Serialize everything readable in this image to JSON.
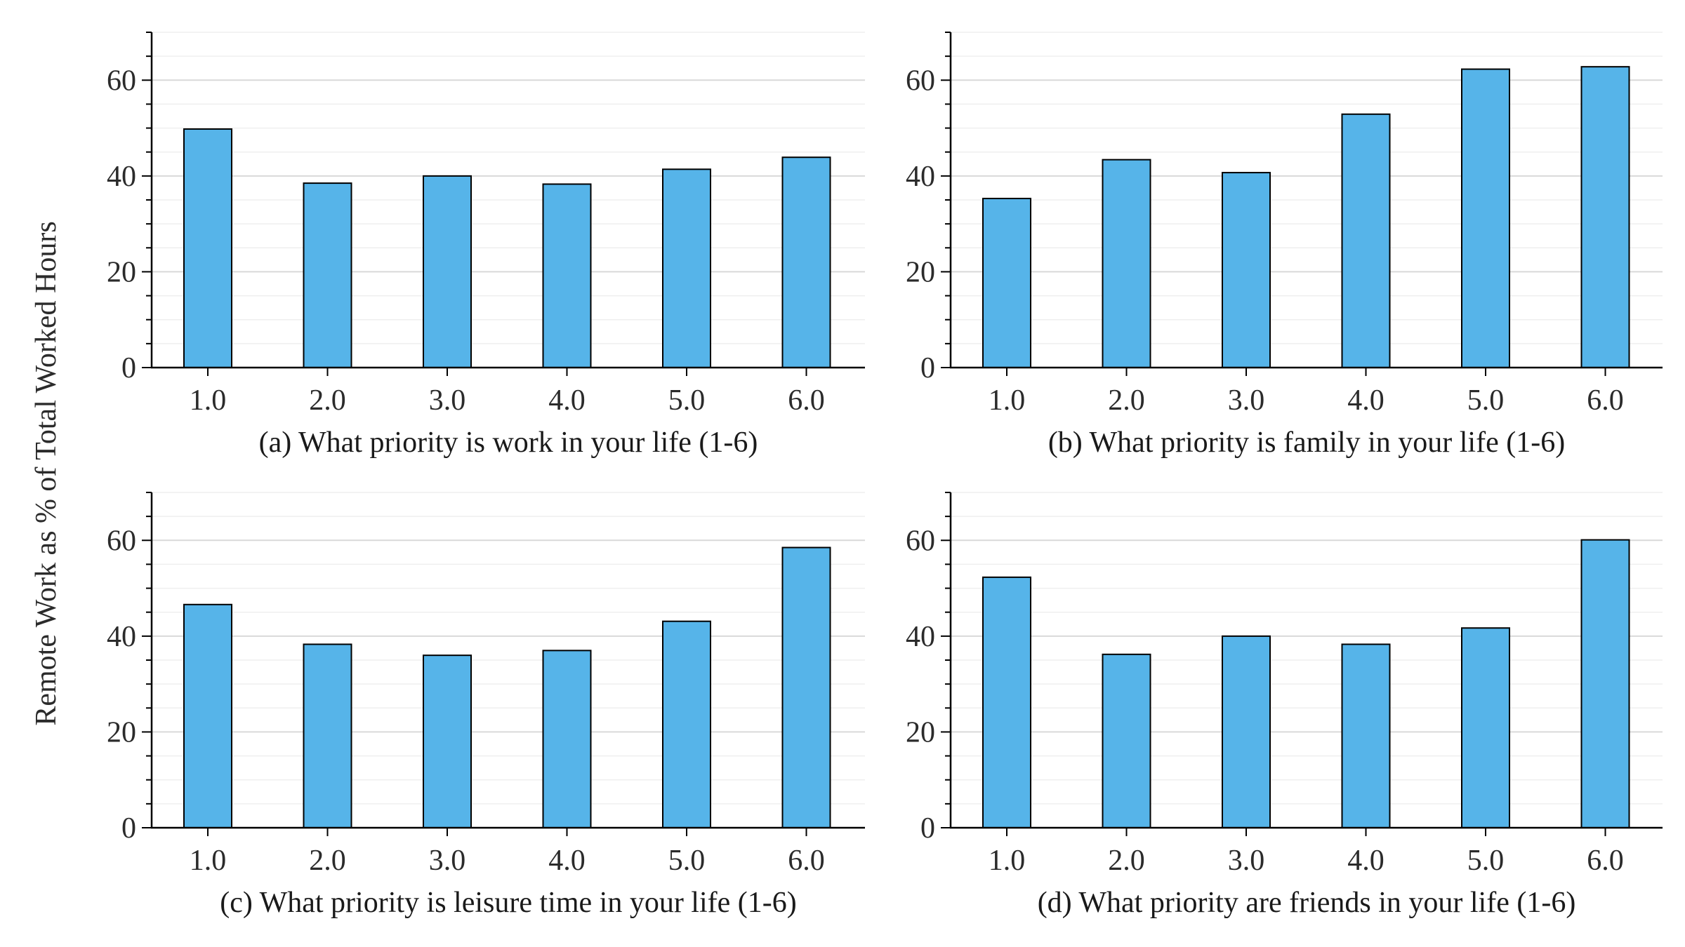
{
  "figure": {
    "ylabel": "Remote Work as % of Total Worked Hours"
  },
  "colors": {
    "bar_fill": "#56b4e9",
    "bar_edge": "#000000",
    "grid_major": "#d9d9d9",
    "grid_minor": "#efefef",
    "axis": "#000000"
  },
  "chart_data": [
    {
      "type": "bar",
      "title": "(a) What priority is work in your life (1-6)",
      "xlabel": "(a) What priority is work in your life (1-6)",
      "ylabel": "Remote Work as % of Total Worked Hours",
      "categories": [
        "1.0",
        "2.0",
        "3.0",
        "4.0",
        "5.0",
        "6.0"
      ],
      "values": [
        49.8,
        38.5,
        40.0,
        38.3,
        41.4,
        43.9
      ],
      "ylim": [
        0,
        70
      ],
      "yticks": [
        "0",
        "20",
        "40",
        "60"
      ],
      "grid": true
    },
    {
      "type": "bar",
      "title": "(b) What priority is family in your life (1-6)",
      "xlabel": "(b) What priority is family in your life (1-6)",
      "ylabel": "Remote Work as % of Total Worked Hours",
      "categories": [
        "1.0",
        "2.0",
        "3.0",
        "4.0",
        "5.0",
        "6.0"
      ],
      "values": [
        35.3,
        43.4,
        40.7,
        52.9,
        62.3,
        62.8
      ],
      "ylim": [
        0,
        70
      ],
      "yticks": [
        "0",
        "20",
        "40",
        "60"
      ],
      "grid": true
    },
    {
      "type": "bar",
      "title": "(c) What priority is leisure time in your life (1-6)",
      "xlabel": "(c) What priority is leisure time in your life (1-6)",
      "ylabel": "Remote Work as % of Total Worked Hours",
      "categories": [
        "1.0",
        "2.0",
        "3.0",
        "4.0",
        "5.0",
        "6.0"
      ],
      "values": [
        46.6,
        38.3,
        36.0,
        37.0,
        43.1,
        58.5
      ],
      "ylim": [
        0,
        70
      ],
      "yticks": [
        "0",
        "20",
        "40",
        "60"
      ],
      "grid": true
    },
    {
      "type": "bar",
      "title": "(d) What priority are friends in your life (1-6)",
      "xlabel": "(d) What priority are friends in your life (1-6)",
      "ylabel": "Remote Work as % of Total Worked Hours",
      "categories": [
        "1.0",
        "2.0",
        "3.0",
        "4.0",
        "5.0",
        "6.0"
      ],
      "values": [
        52.3,
        36.2,
        40.0,
        38.3,
        41.7,
        60.1
      ],
      "ylim": [
        0,
        70
      ],
      "yticks": [
        "0",
        "20",
        "40",
        "60"
      ],
      "grid": true
    }
  ]
}
